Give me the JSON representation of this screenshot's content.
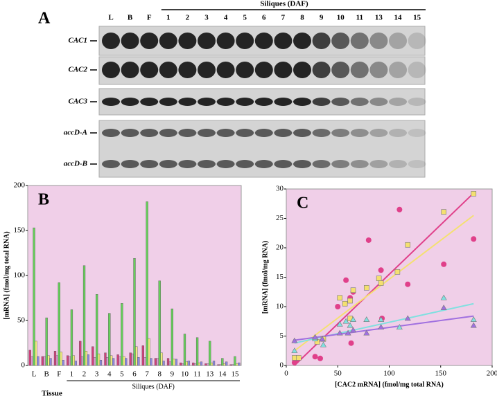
{
  "panel_a": {
    "label": "A",
    "lanes": [
      "L",
      "B",
      "F",
      "1",
      "2",
      "3",
      "4",
      "5",
      "6",
      "7",
      "8",
      "9",
      "10",
      "11",
      "13",
      "14",
      "15"
    ],
    "lane_group": "Siliques (DAF)",
    "rows": [
      "CAC1",
      "CAC2",
      "CAC3",
      "accD-A",
      "accD-B"
    ]
  },
  "chart_data": [
    {
      "type": "bar",
      "title": "B",
      "categories": [
        "L",
        "B",
        "F",
        "1",
        "2",
        "3",
        "4",
        "5",
        "6",
        "7",
        "8",
        "9",
        "10",
        "11",
        "13",
        "14",
        "15"
      ],
      "category_group_label": "Siliques (DAF)",
      "x_label": "Tissue",
      "y_label": "[mRNA] (fmol/mg total RNA)",
      "ylim": [
        0,
        200
      ],
      "yticks": [
        0,
        50,
        100,
        150,
        200
      ],
      "background": "#f0cfe8",
      "series": [
        {
          "color": "#d0407a",
          "values": [
            17,
            10,
            16,
            11,
            27,
            21,
            14,
            12,
            14,
            22,
            8,
            8,
            3,
            3,
            2,
            1,
            1
          ]
        },
        {
          "color": "#d8a0d0",
          "values": [
            10,
            10,
            11,
            10,
            10,
            9,
            9,
            10,
            13,
            9,
            8,
            4,
            2,
            2,
            2,
            1,
            1
          ]
        },
        {
          "color": "#66d05a",
          "values": [
            153,
            53,
            92,
            62,
            111,
            79,
            58,
            69,
            119,
            182,
            94,
            63,
            35,
            31,
            27,
            8,
            10
          ]
        },
        {
          "color": "#f2ee80",
          "values": [
            27,
            11,
            15,
            11,
            16,
            13,
            11,
            10,
            21,
            30,
            14,
            7,
            4,
            3,
            3,
            2,
            2
          ]
        },
        {
          "color": "#8c88e0",
          "values": [
            10,
            8,
            6,
            5,
            12,
            6,
            8,
            8,
            9,
            8,
            5,
            7,
            5,
            4,
            5,
            4,
            3
          ]
        }
      ]
    },
    {
      "type": "scatter",
      "title": "C",
      "x_label": "[CAC2 mRNA] (fmol/mg total RNA)",
      "y_label": "[mRNA] (fmol/mg RNA)",
      "xlim": [
        0,
        200
      ],
      "xticks": [
        0,
        50,
        100,
        150,
        200
      ],
      "ylim": [
        0,
        30
      ],
      "yticks": [
        0,
        5,
        10,
        15,
        20,
        25,
        30
      ],
      "background": "#f0cfe8",
      "series": [
        {
          "color": "#e0408a",
          "marker": "circle",
          "x": [
            8,
            10,
            28,
            33,
            50,
            58,
            62,
            63,
            65,
            80,
            92,
            93,
            110,
            118,
            153,
            182
          ],
          "values": [
            0.5,
            1,
            1.5,
            1.2,
            10,
            14.5,
            11.5,
            3.8,
            12.5,
            21.3,
            16.2,
            8,
            26.5,
            13.8,
            17.2,
            21.5
          ],
          "fit": {
            "x": [
              8,
              182
            ],
            "y": [
              0,
              29.3
            ]
          }
        },
        {
          "color": "#f4e070",
          "marker": "square",
          "x": [
            8,
            12,
            30,
            36,
            52,
            57,
            62,
            62,
            65,
            78,
            90,
            92,
            108,
            118,
            153,
            182
          ],
          "values": [
            1.3,
            1.3,
            4,
            4.5,
            11.5,
            10.5,
            11,
            8,
            12.8,
            13.2,
            14.8,
            14,
            15.9,
            20.5,
            26.1,
            29.2
          ],
          "fit": {
            "x": [
              8,
              182
            ],
            "y": [
              2.5,
              25.5
            ]
          }
        },
        {
          "color": "#80e0e0",
          "marker": "triangle",
          "x": [
            8,
            28,
            36,
            52,
            58,
            62,
            65,
            78,
            92,
            110,
            153,
            182
          ],
          "values": [
            2.5,
            4.5,
            3.5,
            7,
            7.5,
            6.8,
            7.8,
            7.8,
            7.8,
            6.5,
            11.5,
            7.8
          ],
          "fit": {
            "x": [
              8,
              182
            ],
            "y": [
              3.8,
              10.5
            ]
          }
        },
        {
          "color": "#a070e0",
          "marker": "triangle",
          "x": [
            8,
            28,
            35,
            52,
            60,
            65,
            78,
            92,
            118,
            153,
            182
          ],
          "values": [
            4.2,
            4.8,
            4.5,
            5.5,
            5.5,
            6,
            5.5,
            6.5,
            8,
            9.8,
            6.8
          ],
          "fit": {
            "x": [
              8,
              182
            ],
            "y": [
              4.3,
              8.4
            ]
          }
        }
      ]
    }
  ]
}
